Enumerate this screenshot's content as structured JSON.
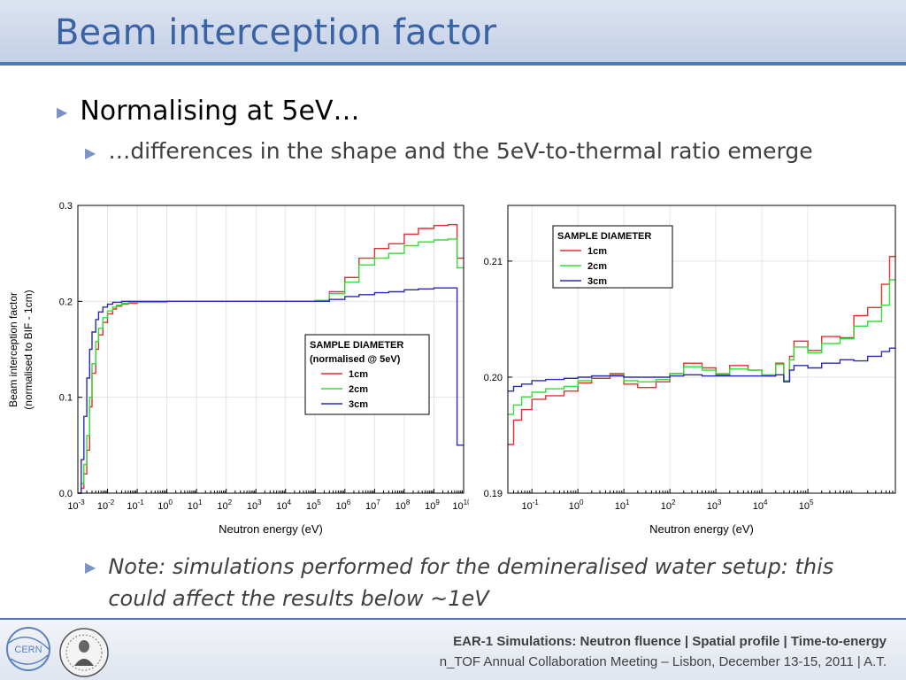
{
  "slide": {
    "title": "Beam interception factor",
    "bullet1": "Normalising at 5eV…",
    "bullet2": "…differences in the shape and the 5eV-to-thermal ratio emerge",
    "note": "Note: simulations performed for the demineralised water setup: this could affect the results below ~1eV",
    "footer_line1": "EAR-1 Simulations: Neutron fluence | Spatial profile | Time-to-energy",
    "footer_line2": "n_TOF Annual Collaboration Meeting – Lisbon, December 13-15, 2011 | A.T.",
    "logo_cern_text": "CERN"
  },
  "colors": {
    "title": "#3a63a6",
    "rule": "#4f79b8",
    "s1": "#e03030",
    "s2": "#33dd33",
    "s3": "#2b2bb8"
  },
  "chart_data": [
    {
      "type": "line",
      "step": true,
      "xscale": "log",
      "xlim": [
        0.001,
        10000000000
      ],
      "ylim": [
        0.0,
        0.3
      ],
      "xlabel": "Neutron energy (eV)",
      "ylabel": "Beam interception factor",
      "ylabel2": "(normalised to BIF - 1cm)",
      "yticks": [
        0.0,
        0.1,
        0.2,
        0.3
      ],
      "ytick_labels": [
        "0.0",
        "0.1",
        "0.2",
        "0.3"
      ],
      "xtick_exponents": [
        -3,
        -2,
        -1,
        0,
        1,
        2,
        3,
        4,
        5,
        6,
        7,
        8,
        9,
        10
      ],
      "legend": {
        "title": "SAMPLE DIAMETER",
        "subtitle": "(normalised @ 5eV)",
        "entries": [
          "1cm",
          "2cm",
          "3cm"
        ]
      },
      "series": [
        {
          "name": "1cm",
          "color": "#e03030",
          "x": [
            0.001,
            0.0013,
            0.0016,
            0.002,
            0.0025,
            0.003,
            0.004,
            0.005,
            0.007,
            0.01,
            0.015,
            0.02,
            0.03,
            0.05,
            0.1,
            1,
            10,
            100,
            1000,
            10000,
            30000,
            100000,
            300000,
            1000000,
            3000000,
            10000000,
            30000000,
            100000000,
            300000000,
            1000000000,
            3000000000,
            5000000000,
            6000000000
          ],
          "y": [
            0.0,
            0.005,
            0.02,
            0.045,
            0.09,
            0.125,
            0.15,
            0.165,
            0.178,
            0.187,
            0.192,
            0.195,
            0.197,
            0.198,
            0.199,
            0.2,
            0.2,
            0.2,
            0.2,
            0.2,
            0.2,
            0.201,
            0.21,
            0.225,
            0.245,
            0.255,
            0.26,
            0.27,
            0.276,
            0.279,
            0.28,
            0.28,
            0.245
          ]
        },
        {
          "name": "2cm",
          "color": "#33dd33",
          "x": [
            0.001,
            0.0013,
            0.0016,
            0.002,
            0.0025,
            0.003,
            0.004,
            0.005,
            0.007,
            0.01,
            0.015,
            0.02,
            0.03,
            0.05,
            0.1,
            1,
            10,
            100,
            1000,
            10000,
            30000,
            100000,
            300000,
            1000000,
            3000000,
            10000000,
            30000000,
            100000000,
            300000000,
            1000000000,
            3000000000,
            5000000000,
            6000000000
          ],
          "y": [
            0.0,
            0.01,
            0.03,
            0.06,
            0.1,
            0.135,
            0.158,
            0.172,
            0.183,
            0.19,
            0.194,
            0.196,
            0.198,
            0.199,
            0.199,
            0.2,
            0.2,
            0.2,
            0.2,
            0.2,
            0.2,
            0.201,
            0.208,
            0.22,
            0.238,
            0.245,
            0.25,
            0.258,
            0.262,
            0.264,
            0.265,
            0.265,
            0.235
          ]
        },
        {
          "name": "3cm",
          "color": "#2b2bb8",
          "x": [
            0.001,
            0.0013,
            0.0016,
            0.002,
            0.0025,
            0.003,
            0.004,
            0.005,
            0.007,
            0.01,
            0.015,
            0.02,
            0.03,
            0.05,
            0.1,
            1,
            10,
            100,
            1000,
            10000,
            30000,
            100000,
            300000,
            1000000,
            3000000,
            10000000,
            30000000,
            100000000,
            300000000,
            1000000000,
            3000000000,
            5000000000,
            6000000000
          ],
          "y": [
            0.0,
            0.035,
            0.08,
            0.12,
            0.15,
            0.168,
            0.181,
            0.189,
            0.194,
            0.197,
            0.199,
            0.199,
            0.2,
            0.2,
            0.2,
            0.2,
            0.2,
            0.2,
            0.2,
            0.2,
            0.2,
            0.2,
            0.202,
            0.205,
            0.207,
            0.209,
            0.21,
            0.212,
            0.213,
            0.214,
            0.214,
            0.214,
            0.05
          ]
        }
      ]
    },
    {
      "type": "line",
      "step": true,
      "xscale": "log",
      "xlim": [
        0.03,
        8000000
      ],
      "ylim": [
        0.19,
        0.2148
      ],
      "xlabel": "Neutron energy (eV)",
      "yticks": [
        0.19,
        0.2,
        0.21
      ],
      "ytick_labels": [
        "0.19",
        "0.20",
        "0.21"
      ],
      "xtick_exponents": [
        -1,
        0,
        1,
        2,
        3,
        4,
        5
      ],
      "legend": {
        "title": "SAMPLE DIAMETER",
        "entries": [
          "1cm",
          "2cm",
          "3cm"
        ]
      },
      "series": [
        {
          "name": "1cm",
          "color": "#e03030",
          "x": [
            0.03,
            0.04,
            0.06,
            0.1,
            0.2,
            0.5,
            1,
            2,
            5,
            10,
            20,
            50,
            100,
            200,
            500,
            1000,
            2000,
            5000,
            10000,
            20000,
            30000,
            40000,
            50000,
            100000,
            200000,
            500000,
            1000000,
            2000000,
            4000000,
            6000000
          ],
          "y": [
            0.1942,
            0.1963,
            0.1972,
            0.1981,
            0.1984,
            0.1988,
            0.1995,
            0.1999,
            0.2003,
            0.1994,
            0.1991,
            0.1996,
            0.2003,
            0.2012,
            0.2008,
            0.2002,
            0.201,
            0.2006,
            0.2001,
            0.2012,
            0.1996,
            0.2018,
            0.2031,
            0.2023,
            0.2035,
            0.2034,
            0.2053,
            0.206,
            0.208,
            0.2104
          ]
        },
        {
          "name": "2cm",
          "color": "#33dd33",
          "x": [
            0.03,
            0.04,
            0.06,
            0.1,
            0.2,
            0.5,
            1,
            2,
            5,
            10,
            20,
            50,
            100,
            200,
            500,
            1000,
            2000,
            5000,
            10000,
            20000,
            30000,
            40000,
            50000,
            100000,
            200000,
            500000,
            1000000,
            2000000,
            4000000,
            6000000
          ],
          "y": [
            0.1968,
            0.1976,
            0.1983,
            0.1987,
            0.199,
            0.1992,
            0.1997,
            0.2001,
            0.2002,
            0.1997,
            0.1996,
            0.1998,
            0.2003,
            0.2009,
            0.2006,
            0.2003,
            0.2007,
            0.2006,
            0.2002,
            0.2011,
            0.1997,
            0.2015,
            0.2026,
            0.2021,
            0.2029,
            0.2033,
            0.2044,
            0.2048,
            0.2062,
            0.2084
          ]
        },
        {
          "name": "3cm",
          "color": "#2b2bb8",
          "x": [
            0.03,
            0.04,
            0.06,
            0.1,
            0.2,
            0.5,
            1,
            2,
            5,
            10,
            20,
            50,
            100,
            200,
            500,
            1000,
            2000,
            5000,
            10000,
            20000,
            30000,
            40000,
            50000,
            100000,
            200000,
            500000,
            1000000,
            2000000,
            4000000,
            6000000
          ],
          "y": [
            0.1988,
            0.1992,
            0.1994,
            0.1997,
            0.1998,
            0.1999,
            0.2,
            0.2001,
            0.2001,
            0.2,
            0.2,
            0.2,
            0.2001,
            0.2002,
            0.2001,
            0.2001,
            0.2001,
            0.2001,
            0.2001,
            0.2002,
            0.1996,
            0.2006,
            0.201,
            0.2008,
            0.2012,
            0.2015,
            0.2014,
            0.2018,
            0.2022,
            0.2025
          ]
        }
      ]
    }
  ]
}
